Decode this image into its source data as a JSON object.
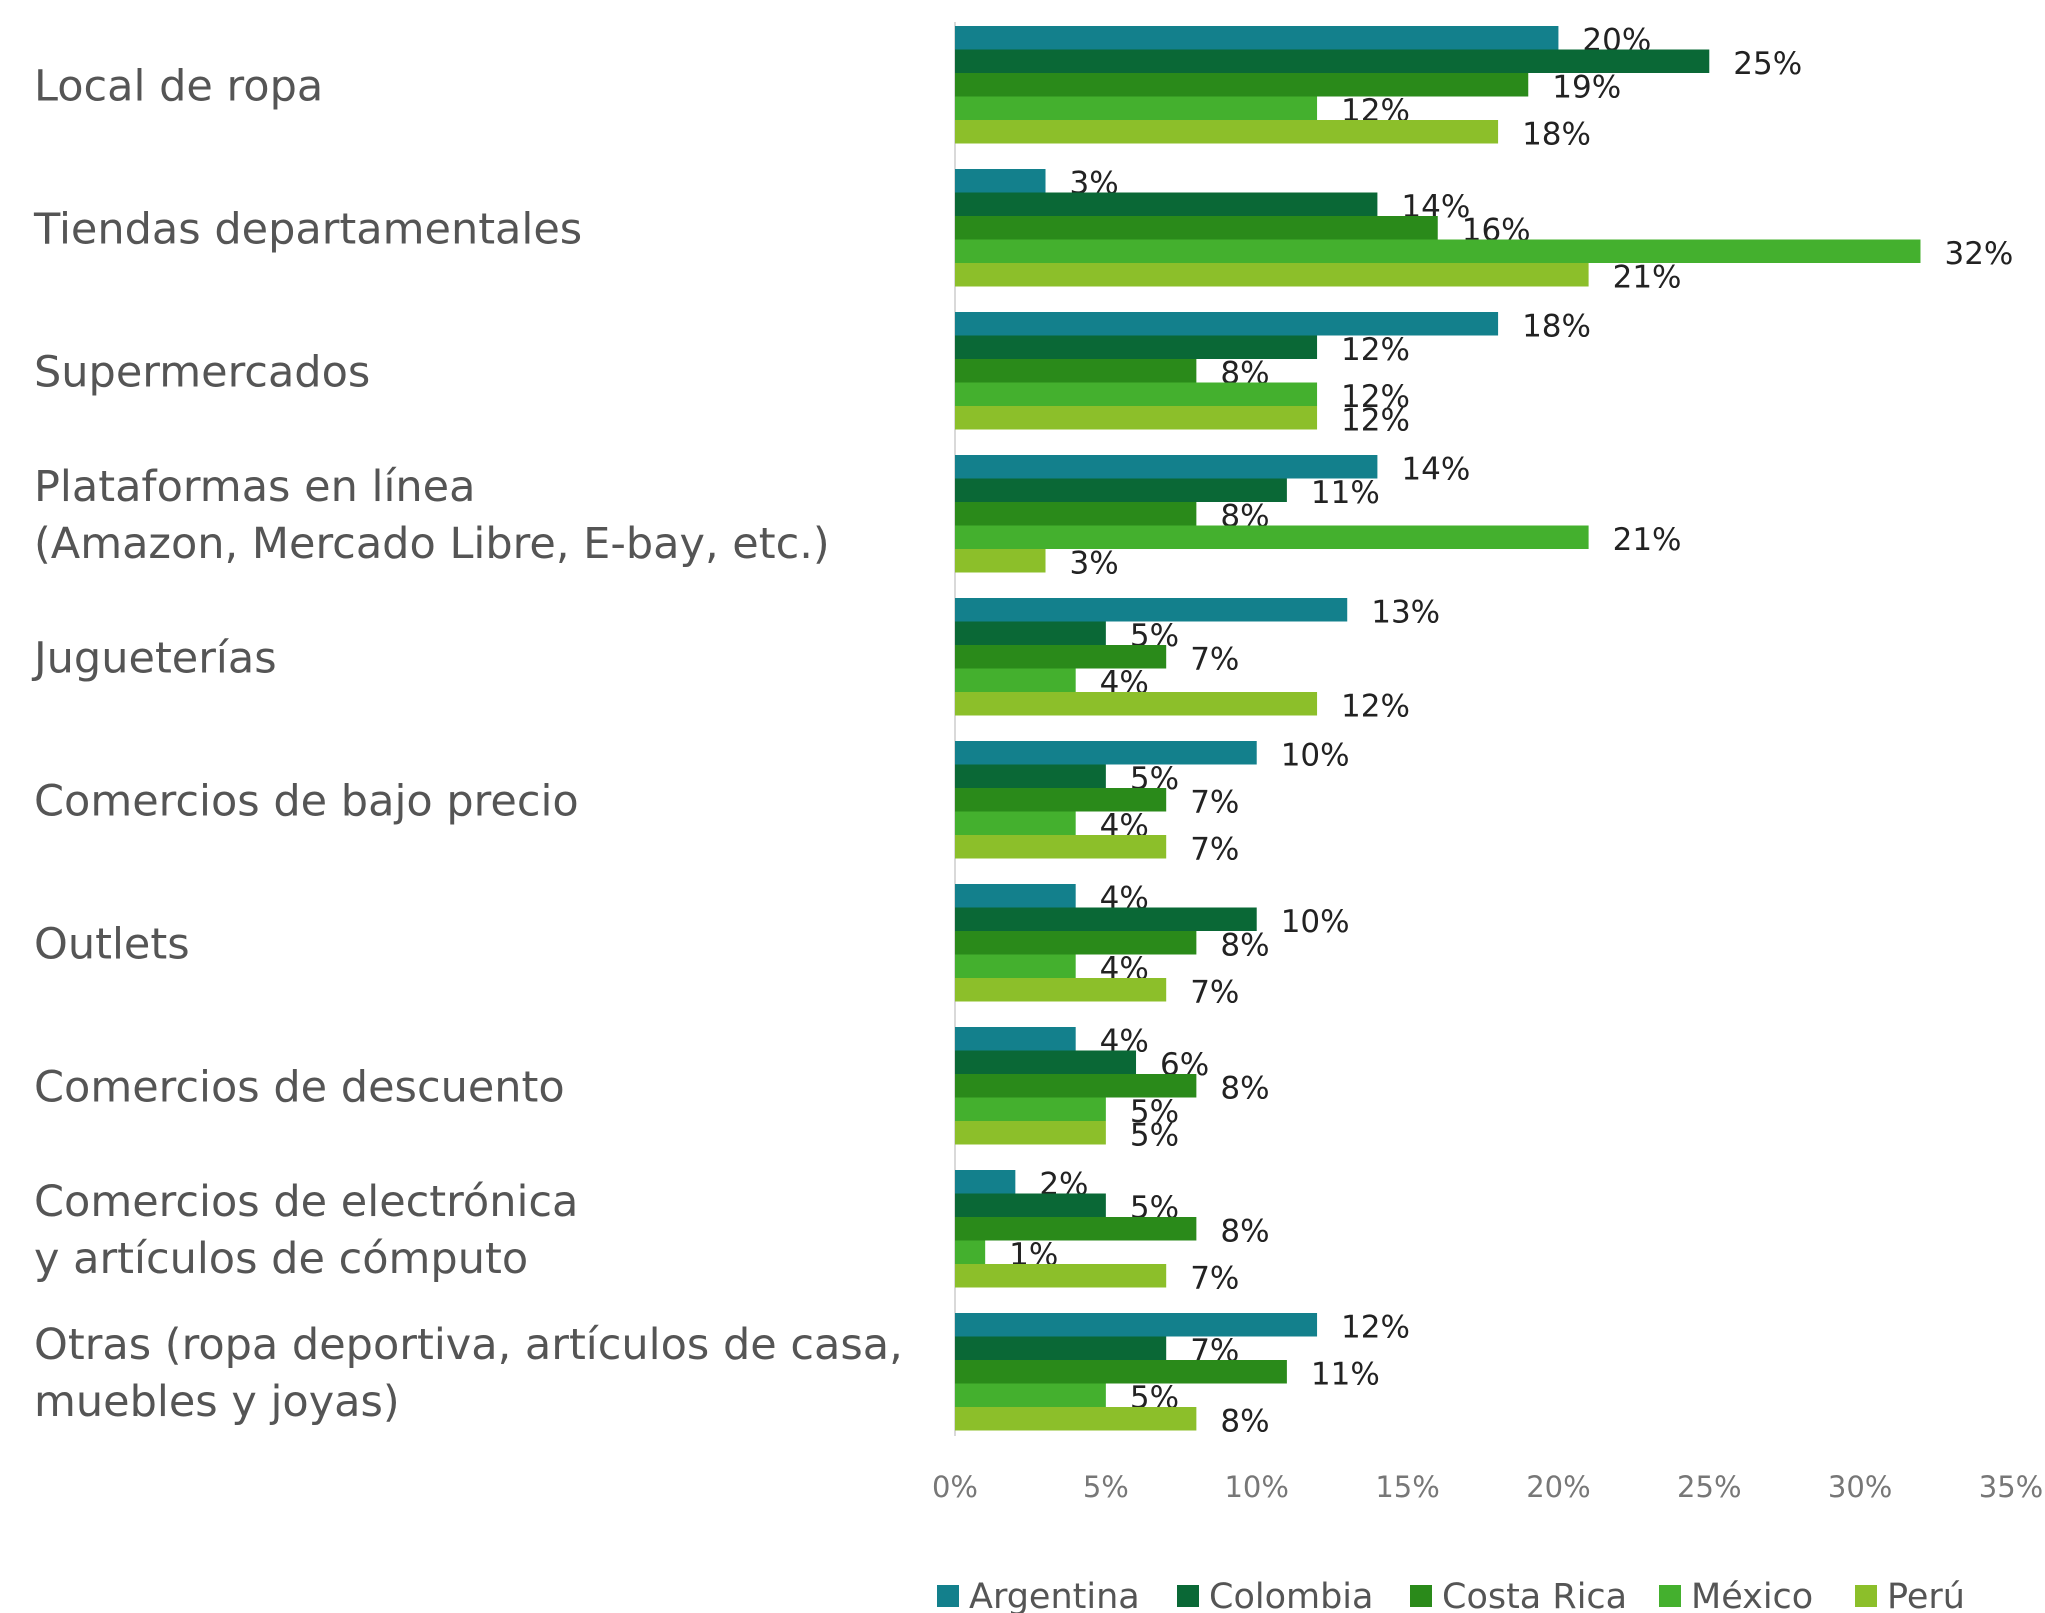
{
  "chart_data": {
    "type": "hbar",
    "categories": [
      "Local de ropa",
      "Tiendas departamentales",
      "Supermercados",
      "Plataformas en línea\n(Amazon, Mercado Libre, E-bay, etc.)",
      "Jugueterías",
      "Comercios de bajo precio",
      "Outlets",
      "Comercios de descuento",
      "Comercios de electrónica\ny artículos de cómputo",
      "Otras (ropa deportiva, artículos de casa,\nmuebles y joyas)"
    ],
    "series": [
      {
        "name": "Argentina",
        "color": "#13808c",
        "values": [
          20,
          3,
          18,
          14,
          13,
          10,
          4,
          4,
          2,
          12
        ],
        "value_labels": [
          "20%",
          "3%",
          "18%",
          "14%",
          "13%",
          "10%",
          "4%",
          "4%",
          "2%",
          "12%"
        ]
      },
      {
        "name": "Colombia",
        "color": "#0a6836",
        "values": [
          25,
          14,
          12,
          11,
          5,
          5,
          10,
          6,
          5,
          7
        ],
        "value_labels": [
          "25%",
          "14%",
          "12%",
          "11%",
          "5%",
          "5%",
          "10%",
          "6%",
          "5%",
          "7%"
        ]
      },
      {
        "name": "Costa Rica",
        "color": "#2a8a1a",
        "values": [
          19,
          16,
          8,
          8,
          7,
          7,
          8,
          8,
          8,
          11
        ],
        "value_labels": [
          "19%",
          "16%",
          "8%",
          "8%",
          "7%",
          "7%",
          "8%",
          "8%",
          "8%",
          "11%"
        ]
      },
      {
        "name": "México",
        "color": "#44b02e",
        "values": [
          12,
          32,
          12,
          21,
          4,
          4,
          4,
          5,
          1,
          5
        ],
        "value_labels": [
          "12%",
          "32%",
          "12%",
          "21%",
          "4%",
          "4%",
          "4%",
          "5%",
          "1%",
          "5%"
        ]
      },
      {
        "name": "Perú",
        "color": "#8cbf2a",
        "values": [
          18,
          21,
          12,
          3,
          12,
          7,
          7,
          5,
          7,
          8
        ],
        "value_labels": [
          "18%",
          "21%",
          "12%",
          "3%",
          "12%",
          "7%",
          "7%",
          "5%",
          "7%",
          "8%"
        ]
      }
    ],
    "xlim": [
      0,
      35
    ],
    "xticks": [
      {
        "value": 0,
        "label": "0%"
      },
      {
        "value": 5,
        "label": "5%"
      },
      {
        "value": 10,
        "label": "10%"
      },
      {
        "value": 15,
        "label": "15%"
      },
      {
        "value": 20,
        "label": "20%"
      },
      {
        "value": 25,
        "label": "25%"
      },
      {
        "value": 30,
        "label": "30%"
      },
      {
        "value": 35,
        "label": "35%"
      }
    ],
    "grid": false,
    "legend": "bottom"
  }
}
